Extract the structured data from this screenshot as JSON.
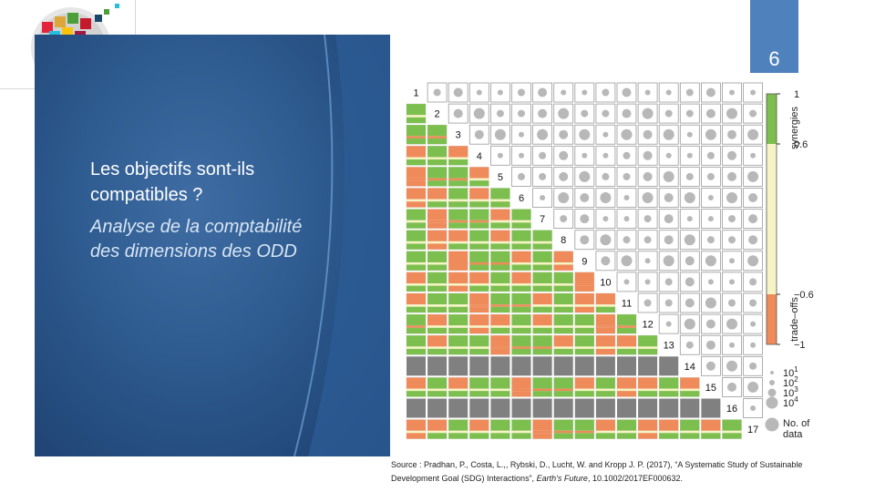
{
  "slide": {
    "page_number": "6",
    "title": "Les objectifs sont-ils compatibles ?",
    "subtitle": "Analyse de la comptabilité des dimensions des ODD",
    "source_prefix": "Source : Pradhan, P., Costa, L.,, Rybski, D., Lucht, W. and Kropp J. P. (2017), “A Systematic Study of Sustainable Development Goal (SDG) Interactions”, ",
    "source_journal": "Earth’s Future",
    "source_suffix": ", 10.1002/2017EF000632."
  },
  "colors": {
    "accent_blue": "#4f81bd",
    "synergy_green": "#7dbf4e",
    "neutral_yellow": "#f6f4c4",
    "tradeoff_orange": "#ef8a5a",
    "no_data_gray": "#808080"
  },
  "chart_data": {
    "type": "heatmap",
    "goals": [
      "1",
      "2",
      "3",
      "4",
      "5",
      "6",
      "7",
      "8",
      "9",
      "10",
      "11",
      "12",
      "13",
      "14",
      "15",
      "16",
      "17"
    ],
    "colorbar": {
      "ticks": [
        "1",
        "0.6",
        "−0.6",
        "−1"
      ],
      "tick_values": [
        1,
        0.6,
        -0.6,
        -1
      ],
      "labels": [
        "synergies",
        "trade–offs"
      ]
    },
    "size_legend": {
      "entries": [
        "10",
        "10",
        "10",
        "10"
      ],
      "exponents": [
        "1",
        "2",
        "3",
        "4"
      ],
      "no_data": "No. of data"
    },
    "gray_rows": [
      14,
      16
    ]
  }
}
